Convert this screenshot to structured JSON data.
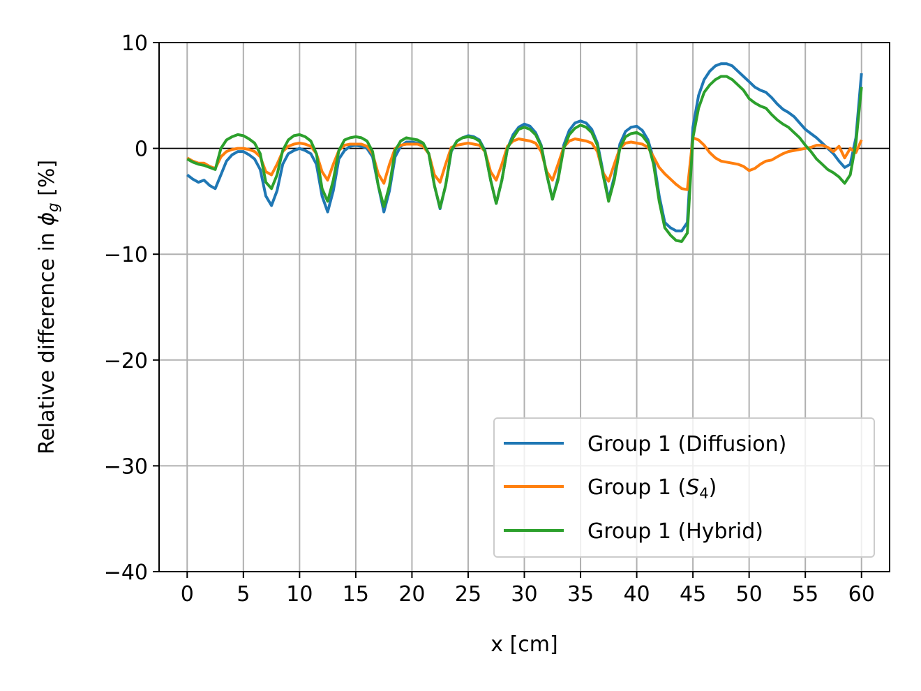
{
  "chart_data": {
    "type": "line",
    "xlabel": "x [cm]",
    "ylabel_parts": [
      "Relative difference in ",
      "ϕ",
      "g",
      " [%]"
    ],
    "xlim": [
      -2.5,
      62.5
    ],
    "ylim": [
      -40,
      10
    ],
    "xticks": [
      0,
      5,
      10,
      15,
      20,
      25,
      30,
      35,
      40,
      45,
      50,
      55,
      60
    ],
    "xtick_labels": [
      "0",
      "5",
      "10",
      "15",
      "20",
      "25",
      "30",
      "35",
      "40",
      "45",
      "50",
      "55",
      "60"
    ],
    "yticks": [
      10,
      0,
      -10,
      -20,
      -30,
      -40
    ],
    "ytick_labels": [
      "10",
      "0",
      "−10",
      "−20",
      "−30",
      "−40"
    ],
    "grid": true,
    "zero_line": true,
    "legend": {
      "position": "lower-right",
      "entries": [
        {
          "prefix": "Group 1 (",
          "main": "Diffusion",
          "sub": "",
          "suffix": ")"
        },
        {
          "prefix": "Group 1 (",
          "main": "S",
          "sub": "4",
          "suffix": ")",
          "italic": true
        },
        {
          "prefix": "Group 1 (",
          "main": "Hybrid",
          "sub": "",
          "suffix": ")"
        }
      ]
    },
    "series": [
      {
        "name": "Group 1 (Diffusion)",
        "color": "#1f77b4",
        "x": [
          0,
          0.5,
          1,
          1.5,
          2,
          2.5,
          3,
          3.5,
          4,
          4.5,
          5,
          5.5,
          6,
          6.5,
          7,
          7.5,
          8,
          8.5,
          9,
          9.5,
          10,
          10.5,
          11,
          11.5,
          12,
          12.5,
          13,
          13.5,
          14,
          14.5,
          15,
          15.5,
          16,
          16.5,
          17,
          17.5,
          18,
          18.5,
          19,
          19.5,
          20,
          20.5,
          21,
          21.5,
          22,
          22.5,
          23,
          23.5,
          24,
          24.5,
          25,
          25.5,
          26,
          26.5,
          27,
          27.5,
          28,
          28.5,
          29,
          29.5,
          30,
          30.5,
          31,
          31.5,
          32,
          32.5,
          33,
          33.5,
          34,
          34.5,
          35,
          35.5,
          36,
          36.5,
          37,
          37.5,
          38,
          38.5,
          39,
          39.5,
          40,
          40.5,
          41,
          41.5,
          42,
          42.5,
          43,
          43.5,
          44,
          44.5,
          45,
          45.5,
          46,
          46.5,
          47,
          47.5,
          48,
          48.5,
          49,
          49.5,
          50,
          50.5,
          51,
          51.5,
          52,
          52.5,
          53,
          53.5,
          54,
          54.5,
          55,
          55.5,
          56,
          56.5,
          57,
          57.5,
          58,
          58.5,
          59,
          59.5,
          60
        ],
        "y": [
          -2.5,
          -2.9,
          -3.2,
          -3.0,
          -3.5,
          -3.8,
          -2.5,
          -1.2,
          -0.6,
          -0.3,
          -0.3,
          -0.6,
          -1.0,
          -2.0,
          -4.5,
          -5.4,
          -4.0,
          -1.5,
          -0.5,
          -0.2,
          0.0,
          -0.2,
          -0.5,
          -1.5,
          -4.5,
          -6.0,
          -4.0,
          -1.0,
          -0.2,
          0.2,
          0.3,
          0.2,
          0.0,
          -0.8,
          -3.5,
          -6.0,
          -4.0,
          -0.8,
          0.2,
          0.6,
          0.6,
          0.5,
          0.3,
          -0.5,
          -3.5,
          -5.7,
          -3.5,
          -0.3,
          0.7,
          1.0,
          1.2,
          1.1,
          0.8,
          -0.2,
          -3.0,
          -5.2,
          -3.0,
          0.0,
          1.3,
          2.0,
          2.3,
          2.1,
          1.5,
          0.3,
          -2.5,
          -4.8,
          -2.8,
          0.3,
          1.7,
          2.4,
          2.6,
          2.4,
          1.8,
          0.5,
          -2.2,
          -4.8,
          -2.7,
          0.4,
          1.6,
          2.0,
          2.1,
          1.7,
          0.8,
          -1.0,
          -4.5,
          -7.0,
          -7.5,
          -7.8,
          -7.8,
          -7.0,
          2.0,
          5.0,
          6.5,
          7.3,
          7.8,
          8.0,
          8.0,
          7.8,
          7.3,
          6.8,
          6.3,
          5.8,
          5.5,
          5.3,
          4.8,
          4.2,
          3.7,
          3.4,
          3.0,
          2.4,
          1.8,
          1.4,
          1.0,
          0.5,
          0.0,
          -0.5,
          -1.2,
          -1.8,
          -1.5,
          1.0,
          7.1
        ]
      },
      {
        "name": "Group 1 (S4)",
        "color": "#ff7f0e",
        "x": [
          0,
          0.5,
          1,
          1.5,
          2,
          2.5,
          3,
          3.5,
          4,
          4.5,
          5,
          5.5,
          6,
          6.5,
          7,
          7.5,
          8,
          8.5,
          9,
          9.5,
          10,
          10.5,
          11,
          11.5,
          12,
          12.5,
          13,
          13.5,
          14,
          14.5,
          15,
          15.5,
          16,
          16.5,
          17,
          17.5,
          18,
          18.5,
          19,
          19.5,
          20,
          20.5,
          21,
          21.5,
          22,
          22.5,
          23,
          23.5,
          24,
          24.5,
          25,
          25.5,
          26,
          26.5,
          27,
          27.5,
          28,
          28.5,
          29,
          29.5,
          30,
          30.5,
          31,
          31.5,
          32,
          32.5,
          33,
          33.5,
          34,
          34.5,
          35,
          35.5,
          36,
          36.5,
          37,
          37.5,
          38,
          38.5,
          39,
          39.5,
          40,
          40.5,
          41,
          41.5,
          42,
          42.5,
          43,
          43.5,
          44,
          44.5,
          45,
          45.5,
          46,
          46.5,
          47,
          47.5,
          48,
          48.5,
          49,
          49.5,
          50,
          50.5,
          51,
          51.5,
          52,
          52.5,
          53,
          53.5,
          54,
          54.5,
          55,
          55.5,
          56,
          56.5,
          57,
          57.5,
          58,
          58.5,
          59,
          59.5,
          60
        ],
        "y": [
          -0.9,
          -1.2,
          -1.4,
          -1.4,
          -1.7,
          -1.9,
          -0.8,
          -0.3,
          -0.1,
          0.0,
          0.0,
          -0.1,
          -0.3,
          -0.8,
          -2.2,
          -2.5,
          -1.5,
          -0.3,
          0.2,
          0.4,
          0.5,
          0.4,
          0.2,
          -0.5,
          -2.2,
          -3.0,
          -1.5,
          -0.2,
          0.3,
          0.4,
          0.4,
          0.4,
          0.2,
          -0.5,
          -2.4,
          -3.3,
          -1.5,
          0.0,
          0.3,
          0.4,
          0.4,
          0.4,
          0.2,
          -0.5,
          -2.5,
          -3.2,
          -1.5,
          0.1,
          0.3,
          0.4,
          0.5,
          0.4,
          0.3,
          -0.3,
          -2.2,
          -3.0,
          -1.5,
          0.2,
          0.7,
          0.9,
          0.8,
          0.7,
          0.5,
          -0.3,
          -2.2,
          -3.0,
          -1.5,
          0.1,
          0.7,
          0.9,
          0.8,
          0.7,
          0.5,
          -0.3,
          -2.3,
          -3.1,
          -1.5,
          0.0,
          0.5,
          0.6,
          0.5,
          0.4,
          0.1,
          -0.8,
          -1.8,
          -2.4,
          -2.9,
          -3.4,
          -3.8,
          -3.9,
          1.0,
          0.8,
          0.3,
          -0.4,
          -0.9,
          -1.2,
          -1.3,
          -1.4,
          -1.5,
          -1.7,
          -2.1,
          -1.9,
          -1.5,
          -1.2,
          -1.1,
          -0.8,
          -0.5,
          -0.3,
          -0.2,
          -0.1,
          0.0,
          0.1,
          0.3,
          0.3,
          0.1,
          -0.3,
          0.2,
          -0.9,
          0.0,
          -0.4,
          0.8
        ]
      },
      {
        "name": "Group 1 (Hybrid)",
        "color": "#2ca02c",
        "x": [
          0,
          0.5,
          1,
          1.5,
          2,
          2.5,
          3,
          3.5,
          4,
          4.5,
          5,
          5.5,
          6,
          6.5,
          7,
          7.5,
          8,
          8.5,
          9,
          9.5,
          10,
          10.5,
          11,
          11.5,
          12,
          12.5,
          13,
          13.5,
          14,
          14.5,
          15,
          15.5,
          16,
          16.5,
          17,
          17.5,
          18,
          18.5,
          19,
          19.5,
          20,
          20.5,
          21,
          21.5,
          22,
          22.5,
          23,
          23.5,
          24,
          24.5,
          25,
          25.5,
          26,
          26.5,
          27,
          27.5,
          28,
          28.5,
          29,
          29.5,
          30,
          30.5,
          31,
          31.5,
          32,
          32.5,
          33,
          33.5,
          34,
          34.5,
          35,
          35.5,
          36,
          36.5,
          37,
          37.5,
          38,
          38.5,
          39,
          39.5,
          40,
          40.5,
          41,
          41.5,
          42,
          42.5,
          43,
          43.5,
          44,
          44.5,
          45,
          45.5,
          46,
          46.5,
          47,
          47.5,
          48,
          48.5,
          49,
          49.5,
          50,
          50.5,
          51,
          51.5,
          52,
          52.5,
          53,
          53.5,
          54,
          54.5,
          55,
          55.5,
          56,
          56.5,
          57,
          57.5,
          58,
          58.5,
          59,
          59.5,
          60
        ],
        "y": [
          -1.0,
          -1.3,
          -1.5,
          -1.6,
          -1.8,
          -2.0,
          0.0,
          0.8,
          1.1,
          1.3,
          1.2,
          0.9,
          0.5,
          -0.5,
          -3.2,
          -3.8,
          -2.5,
          -0.2,
          0.8,
          1.2,
          1.3,
          1.1,
          0.7,
          -0.5,
          -3.8,
          -5.0,
          -3.0,
          -0.2,
          0.8,
          1.0,
          1.1,
          1.0,
          0.7,
          -0.3,
          -3.5,
          -5.5,
          -3.5,
          -0.2,
          0.7,
          1.0,
          0.9,
          0.8,
          0.5,
          -0.5,
          -3.5,
          -5.6,
          -3.5,
          -0.2,
          0.7,
          1.0,
          1.1,
          1.0,
          0.7,
          -0.3,
          -3.0,
          -5.2,
          -3.0,
          0.0,
          1.0,
          1.8,
          2.0,
          1.8,
          1.3,
          0.2,
          -2.5,
          -4.8,
          -3.0,
          0.0,
          1.3,
          1.9,
          2.2,
          2.0,
          1.5,
          0.3,
          -2.5,
          -5.0,
          -3.0,
          0.0,
          1.1,
          1.4,
          1.5,
          1.2,
          0.5,
          -1.5,
          -5.0,
          -7.5,
          -8.2,
          -8.7,
          -8.8,
          -8.0,
          1.0,
          3.8,
          5.3,
          6.0,
          6.5,
          6.8,
          6.8,
          6.5,
          6.0,
          5.5,
          4.7,
          4.3,
          4.0,
          3.8,
          3.2,
          2.7,
          2.3,
          2.0,
          1.5,
          1.0,
          0.3,
          -0.3,
          -1.0,
          -1.5,
          -2.0,
          -2.3,
          -2.7,
          -3.3,
          -2.5,
          0.5,
          5.8
        ]
      }
    ]
  }
}
